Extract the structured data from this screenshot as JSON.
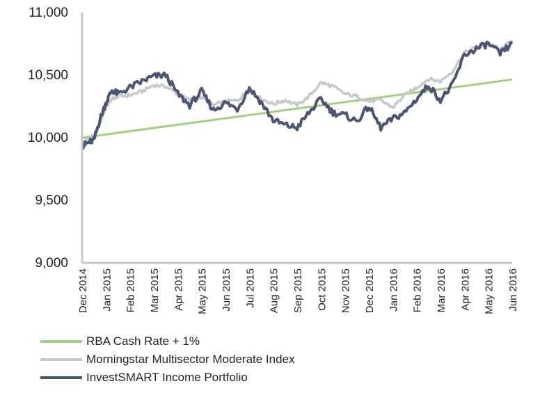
{
  "chart_data": {
    "type": "line",
    "title": "",
    "xlabel": "",
    "ylabel": "",
    "ylim": [
      9000,
      11000
    ],
    "y_ticks": [
      {
        "value": 9000,
        "label": "9,000"
      },
      {
        "value": 9500,
        "label": "9,500"
      },
      {
        "value": 10000,
        "label": "10,000"
      },
      {
        "value": 10500,
        "label": "10,500"
      },
      {
        "value": 11000,
        "label": "11,000"
      }
    ],
    "x_range": [
      0,
      18
    ],
    "categories": [
      "Dec 2014",
      "Jan 2015",
      "Feb 2015",
      "Mar 2015",
      "Apr 2015",
      "May 2015",
      "Jun 2015",
      "Jul 2015",
      "Aug 2015",
      "Sep 2015",
      "Oct 2015",
      "Nov 2015",
      "Dec 2015",
      "Jan 2016",
      "Feb 2016",
      "Mar 2016",
      "Apr 2016",
      "May 2016",
      "Jun 2016"
    ],
    "series": [
      {
        "name": "RBA Cash Rate + 1%",
        "color": "#9fd17e",
        "x": [
          0,
          18
        ],
        "values": [
          10000,
          10465
        ]
      },
      {
        "name": "Morningstar Multisector Moderate Index",
        "color": "#c6c8cb",
        "x": [
          0,
          0.25,
          0.5,
          0.75,
          1.0,
          1.25,
          1.5,
          2.0,
          2.5,
          3.0,
          3.5,
          4.0,
          4.5,
          5.0,
          5.5,
          6.0,
          6.5,
          7.0,
          7.5,
          8.0,
          8.5,
          9.0,
          9.5,
          10.0,
          10.5,
          11.0,
          11.5,
          12.0,
          12.5,
          13.0,
          13.5,
          14.0,
          14.5,
          15.0,
          15.5,
          16.0,
          16.5,
          17.0,
          17.5,
          18.0
        ],
        "values": [
          9960,
          9990,
          10020,
          10120,
          10250,
          10310,
          10330,
          10340,
          10370,
          10420,
          10410,
          10350,
          10300,
          10320,
          10260,
          10290,
          10300,
          10380,
          10310,
          10270,
          10300,
          10260,
          10330,
          10440,
          10410,
          10350,
          10330,
          10290,
          10300,
          10240,
          10340,
          10400,
          10470,
          10450,
          10530,
          10680,
          10720,
          10750,
          10700,
          10780
        ]
      },
      {
        "name": "InvestSMART Income Portfolio",
        "color": "#4b5672",
        "x": [
          0,
          0.25,
          0.5,
          0.75,
          1.0,
          1.25,
          1.5,
          2.0,
          2.5,
          3.0,
          3.5,
          4.0,
          4.5,
          5.0,
          5.5,
          6.0,
          6.5,
          7.0,
          7.5,
          8.0,
          8.5,
          9.0,
          9.5,
          10.0,
          10.5,
          11.0,
          11.5,
          12.0,
          12.5,
          13.0,
          13.5,
          14.0,
          14.5,
          15.0,
          15.5,
          16.0,
          16.5,
          17.0,
          17.5,
          18.0
        ],
        "values": [
          9930,
          9960,
          9980,
          10150,
          10280,
          10380,
          10350,
          10400,
          10450,
          10490,
          10500,
          10350,
          10260,
          10370,
          10220,
          10280,
          10230,
          10400,
          10280,
          10140,
          10100,
          10080,
          10200,
          10310,
          10200,
          10180,
          10130,
          10250,
          10080,
          10150,
          10200,
          10310,
          10420,
          10300,
          10420,
          10660,
          10710,
          10750,
          10670,
          10750
        ]
      }
    ]
  }
}
